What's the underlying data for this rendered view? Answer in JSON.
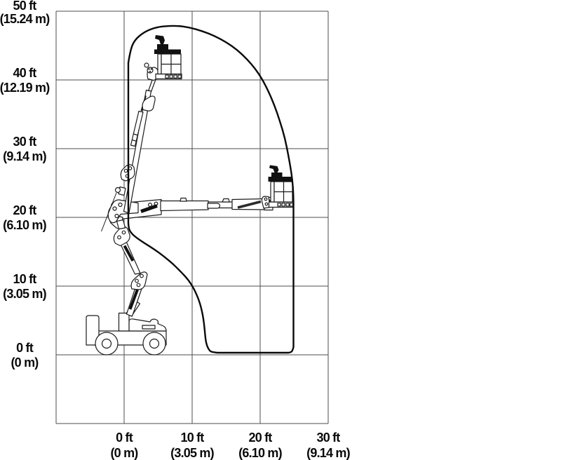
{
  "colors": {
    "background": "#ffffff",
    "grid_line": "#4d4d4d",
    "envelope_line": "#0a0a0a",
    "machine_line": "#1c1c1c",
    "label_text": "#0a0a0a"
  },
  "icons": {
    "machine_elevated": "articulating-boom-lift-fully-elevated",
    "machine_extended": "articulating-boom-lift-max-horizontal-reach"
  },
  "chart_data": {
    "type": "area",
    "title": "",
    "xlabel": "",
    "ylabel": "",
    "grid": true,
    "x_axis": {
      "range_ft": [
        -10,
        30
      ],
      "gridline_values_ft": [
        -10,
        0,
        10,
        20,
        30
      ],
      "ticks": [
        {
          "value_ft": 0,
          "label_ft": "0 ft",
          "label_m": "(0 m)"
        },
        {
          "value_ft": 10,
          "label_ft": "10 ft",
          "label_m": "(3.05 m)"
        },
        {
          "value_ft": 20,
          "label_ft": "20 ft",
          "label_m": "(6.10 m)"
        },
        {
          "value_ft": 30,
          "label_ft": "30 ft",
          "label_m": "(9.14 m)"
        }
      ]
    },
    "y_axis": {
      "range_ft": [
        -10,
        50
      ],
      "gridline_values_ft": [
        -10,
        0,
        10,
        20,
        30,
        40,
        50
      ],
      "ticks": [
        {
          "value_ft": 50,
          "label_ft": "50 ft",
          "label_m": "(15.24 m)"
        },
        {
          "value_ft": 40,
          "label_ft": "40 ft",
          "label_m": "(12.19 m)"
        },
        {
          "value_ft": 30,
          "label_ft": "30 ft",
          "label_m": "(9.14 m)"
        },
        {
          "value_ft": 20,
          "label_ft": "20 ft",
          "label_m": "(6.10 m)"
        },
        {
          "value_ft": 10,
          "label_ft": "10 ft",
          "label_m": "(3.05 m)"
        },
        {
          "value_ft": 0,
          "label_ft": "0 ft",
          "label_m": "(0 m)"
        }
      ]
    },
    "envelope_ft": {
      "max_platform_height_ft": 47.9,
      "max_horizontal_reach_ft": 24.9,
      "top_arc": [
        [
          0.62,
          42.5
        ],
        [
          0.93,
          44.4
        ],
        [
          1.55,
          45.8
        ],
        [
          2.7,
          46.8
        ],
        [
          4.0,
          47.45
        ],
        [
          5.5,
          47.8
        ],
        [
          7.75,
          47.9
        ],
        [
          9.6,
          47.65
        ],
        [
          11.5,
          47.1
        ],
        [
          13.3,
          46.4
        ],
        [
          15.0,
          45.5
        ],
        [
          16.6,
          44.4
        ],
        [
          18.1,
          43.0
        ],
        [
          19.3,
          41.6
        ],
        [
          20.25,
          40.2
        ],
        [
          21.2,
          38.4
        ],
        [
          22.1,
          36.3
        ],
        [
          22.9,
          34.0
        ],
        [
          23.65,
          31.5
        ],
        [
          24.15,
          29.0
        ],
        [
          24.6,
          26.5
        ],
        [
          24.85,
          24.3
        ],
        [
          24.9,
          22.1
        ]
      ],
      "right_edge": [
        [
          24.9,
          22.1
        ],
        [
          24.9,
          1.15
        ]
      ],
      "bottom_right_corner": [
        [
          24.9,
          1.15
        ],
        [
          24.75,
          0.5
        ],
        [
          24.35,
          0.33
        ],
        [
          24.05,
          0.31
        ]
      ],
      "bottom_edge": [
        [
          24.05,
          0.31
        ],
        [
          13.7,
          0.31
        ]
      ],
      "inner_curve": [
        [
          13.7,
          0.31
        ],
        [
          12.95,
          0.4
        ],
        [
          12.6,
          0.55
        ],
        [
          12.19,
          1.25
        ],
        [
          11.98,
          2.15
        ],
        [
          11.83,
          3.7
        ],
        [
          11.67,
          5.2
        ],
        [
          11.36,
          6.75
        ],
        [
          10.95,
          8.1
        ],
        [
          10.33,
          9.5
        ],
        [
          9.5,
          10.85
        ],
        [
          8.47,
          11.95
        ],
        [
          7.23,
          13.2
        ],
        [
          5.89,
          14.3
        ],
        [
          4.44,
          15.35
        ],
        [
          3.0,
          16.25
        ],
        [
          1.86,
          17.0
        ],
        [
          1.03,
          17.7
        ],
        [
          0.67,
          18.4
        ],
        [
          0.62,
          19.2
        ]
      ],
      "left_edge": [
        [
          0.62,
          19.2
        ],
        [
          0.62,
          42.5
        ]
      ]
    }
  }
}
